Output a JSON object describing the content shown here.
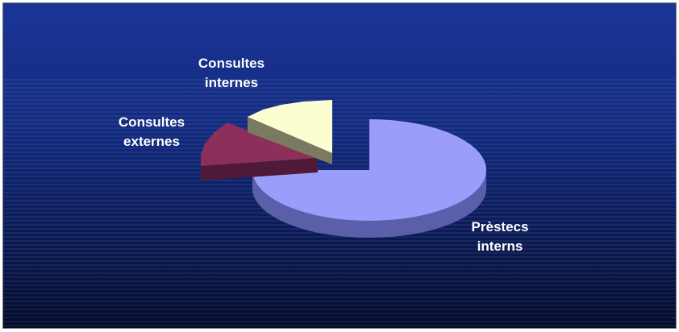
{
  "chart_data": {
    "type": "pie",
    "style": "3d-exploded",
    "title": "",
    "slices": [
      {
        "label": [
          "Prèstecs",
          "interns"
        ],
        "value": 73,
        "color": "#9b9dfb"
      },
      {
        "label": [
          "Consultes",
          "externes"
        ],
        "value": 13,
        "color": "#8c2f5a"
      },
      {
        "label": [
          "Consultes",
          "internes"
        ],
        "value": 14,
        "color": "#fdfdd2"
      }
    ],
    "legend": "none",
    "background_color": "#14307f"
  }
}
